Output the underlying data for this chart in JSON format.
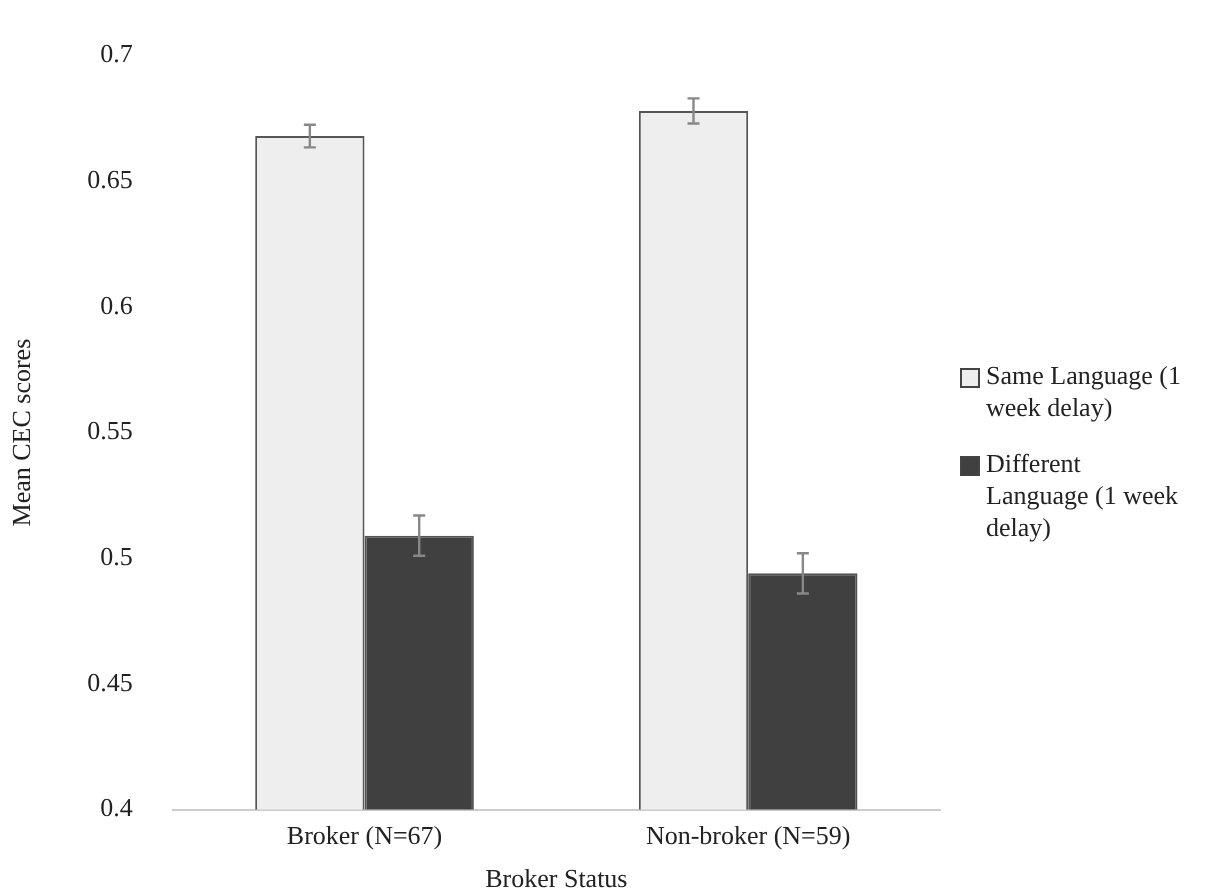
{
  "chart_data": {
    "type": "bar",
    "xlabel": "Broker Status",
    "ylabel": "Mean CEC scores",
    "categories": [
      "Broker (N=67)",
      "Non-broker (N=59)"
    ],
    "series": [
      {
        "name": "Same Language (1 week delay)",
        "color": "#eeeeee",
        "values": [
          0.668,
          0.678
        ],
        "errors": [
          0.0045,
          0.005
        ]
      },
      {
        "name": "Different Language (1 week delay)",
        "color": "#404040",
        "values": [
          0.509,
          0.494
        ],
        "errors": [
          0.008,
          0.008
        ]
      }
    ],
    "ylim": [
      0.4,
      0.7
    ],
    "yticks": [
      0.4,
      0.45,
      0.5,
      0.55,
      0.6,
      0.65,
      0.7
    ],
    "grid": false,
    "legend": "right"
  }
}
